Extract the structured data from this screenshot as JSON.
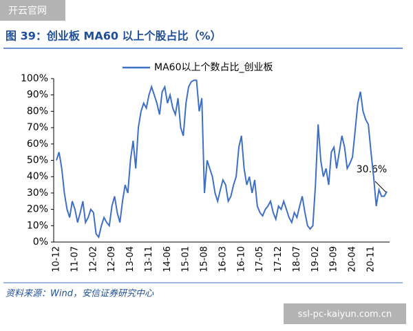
{
  "chart_data": {
    "type": "line",
    "watermark_top": "开云官网",
    "title": "图 39：创业板 MA60 以上个股占比（%）",
    "source": "资料来源：Wind，安信证券研究中心",
    "watermark_bottom": "ssl-pc-kaiyun.com.cn",
    "annotation": "30.6%",
    "categories": [
      "10-12",
      null,
      null,
      null,
      null,
      null,
      null,
      "11-07",
      null,
      null,
      null,
      null,
      null,
      null,
      "12-02",
      null,
      null,
      null,
      null,
      null,
      null,
      "12-09",
      null,
      null,
      null,
      null,
      null,
      null,
      "13-04",
      null,
      null,
      null,
      null,
      null,
      null,
      "13-11",
      null,
      null,
      null,
      null,
      null,
      null,
      "14-06",
      null,
      null,
      null,
      null,
      null,
      null,
      "15-01",
      null,
      null,
      null,
      null,
      null,
      null,
      "15-08",
      null,
      null,
      null,
      null,
      null,
      null,
      "16-03",
      null,
      null,
      null,
      null,
      null,
      null,
      "16-10",
      null,
      null,
      null,
      null,
      null,
      null,
      "17-05",
      null,
      null,
      null,
      null,
      null,
      null,
      "17-12",
      null,
      null,
      null,
      null,
      null,
      null,
      "18-07",
      null,
      null,
      null,
      null,
      null,
      null,
      "19-02",
      null,
      null,
      null,
      null,
      null,
      null,
      "19-09",
      null,
      null,
      null,
      null,
      null,
      null,
      "20-04",
      null,
      null,
      null,
      null,
      null,
      null,
      "20-11",
      null,
      null,
      null,
      null,
      null,
      null
    ],
    "series": [
      {
        "name": "MA60以上个数占比_创业板",
        "color": "#3d6fc4",
        "values": [
          50,
          55,
          45,
          30,
          20,
          15,
          25,
          20,
          12,
          18,
          25,
          12,
          15,
          20,
          18,
          5,
          3,
          10,
          15,
          12,
          10,
          22,
          28,
          18,
          12,
          25,
          35,
          30,
          50,
          62,
          45,
          70,
          80,
          85,
          82,
          90,
          95,
          90,
          85,
          78,
          92,
          95,
          85,
          90,
          82,
          78,
          88,
          70,
          65,
          85,
          95,
          98,
          99,
          99,
          80,
          88,
          30,
          50,
          45,
          40,
          30,
          25,
          32,
          38,
          35,
          25,
          28,
          35,
          40,
          58,
          65,
          45,
          35,
          40,
          30,
          38,
          22,
          18,
          16,
          20,
          22,
          25,
          18,
          14,
          22,
          20,
          25,
          20,
          15,
          12,
          18,
          15,
          22,
          28,
          18,
          10,
          8,
          10,
          35,
          72,
          50,
          40,
          45,
          35,
          55,
          58,
          45,
          55,
          65,
          58,
          45,
          48,
          52,
          68,
          85,
          92,
          80,
          75,
          72,
          55,
          40,
          22,
          32,
          28,
          28,
          31
        ]
      }
    ],
    "ylim": [
      0,
      100
    ],
    "yticks": [
      {
        "value": 0,
        "label": "0%"
      },
      {
        "value": 10,
        "label": "10%"
      },
      {
        "value": 20,
        "label": "20%"
      },
      {
        "value": 30,
        "label": "30%"
      },
      {
        "value": 40,
        "label": "40%"
      },
      {
        "value": 50,
        "label": "50%"
      },
      {
        "value": 60,
        "label": "60%"
      },
      {
        "value": 70,
        "label": "70%"
      },
      {
        "value": 80,
        "label": "80%"
      },
      {
        "value": 90,
        "label": "90%"
      },
      {
        "value": 100,
        "label": "100%"
      }
    ]
  }
}
